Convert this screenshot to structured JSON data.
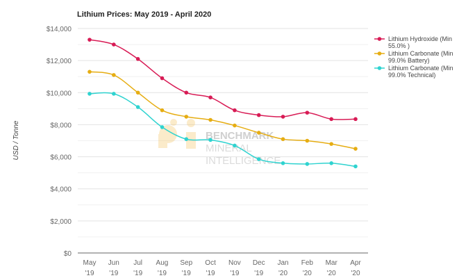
{
  "chart_data": {
    "type": "line",
    "title": "Lithium Prices: May 2019 - April 2020",
    "ylabel": "USD / Tonne",
    "xlabel": "",
    "ylim": [
      0,
      14000
    ],
    "yticks": [
      "$0",
      "$2,000",
      "$4,000",
      "$6,000",
      "$8,000",
      "$10,000",
      "$12,000",
      "$14,000"
    ],
    "grid": true,
    "legend_position": "right",
    "categories": [
      [
        "May",
        "'19"
      ],
      [
        "Jun",
        "'19"
      ],
      [
        "Jul",
        "'19"
      ],
      [
        "Aug",
        "'19"
      ],
      [
        "Sep",
        "'19"
      ],
      [
        "Oct",
        "'19"
      ],
      [
        "Nov",
        "'19"
      ],
      [
        "Dec",
        "'19"
      ],
      [
        "Jan",
        "'20"
      ],
      [
        "Feb",
        "'20"
      ],
      [
        "Mar",
        "'20"
      ],
      [
        "Apr",
        "'20"
      ]
    ],
    "series": [
      {
        "name": "Lithium Hydroxide (Min 55.0% )",
        "legend_lines": [
          "Lithium Hydroxide (Min",
          "55.0% )"
        ],
        "color": "#d81b55",
        "values": [
          13300,
          13000,
          12100,
          10900,
          10000,
          9700,
          8900,
          8600,
          8500,
          8750,
          8350,
          8350
        ]
      },
      {
        "name": "Lithium Carbonate (Min 99.0% Battery)",
        "legend_lines": [
          "Lithium Carbonate (Min",
          "99.0% Battery)"
        ],
        "color": "#e6ad12",
        "values": [
          11300,
          11100,
          10000,
          8900,
          8500,
          8300,
          7950,
          7500,
          7100,
          7000,
          6800,
          6500
        ]
      },
      {
        "name": "Lithium Carbonate (Min 99.0% Technical)",
        "legend_lines": [
          "Lithium Carbonate (Min",
          "99.0% Technical)"
        ],
        "color": "#2fd3d0",
        "values": [
          9930,
          9930,
          9100,
          7850,
          7100,
          7050,
          6700,
          5850,
          5600,
          5550,
          5600,
          5400
        ]
      }
    ]
  },
  "watermark": {
    "lines": [
      "BENCHMARK",
      "MINERAL",
      "INTELLIGENCE"
    ]
  }
}
